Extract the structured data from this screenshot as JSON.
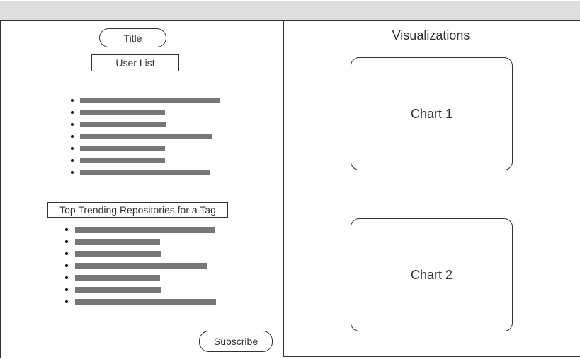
{
  "left": {
    "title_button": "Title",
    "user_list_label": "User List",
    "user_list_items": [
      0.985,
      0.6,
      0.605,
      0.93,
      0.6,
      0.6,
      0.92
    ],
    "trending_label": "Top Trending Repositories for a Tag",
    "trending_items": [
      0.985,
      0.6,
      0.605,
      0.935,
      0.6,
      0.605,
      0.995
    ],
    "subscribe_button": "Subscribe"
  },
  "right": {
    "heading": "Visualizations",
    "charts": [
      {
        "label": "Chart 1"
      },
      {
        "label": "Chart 2"
      }
    ]
  }
}
